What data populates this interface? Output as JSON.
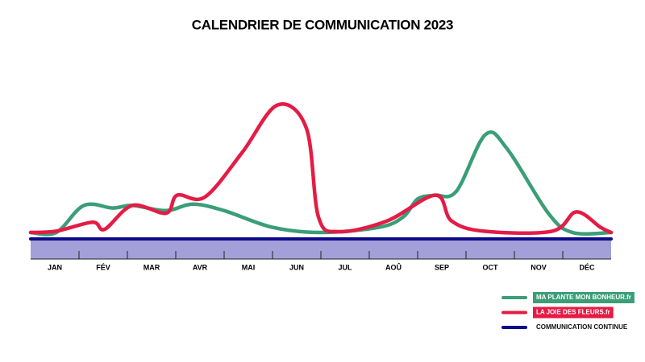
{
  "chart_data": {
    "type": "line",
    "title": "CALENDRIER DE COMMUNICATION 2023",
    "categories": [
      "JAN",
      "FÉV",
      "MAR",
      "AVR",
      "MAI",
      "JUN",
      "JUL",
      "AOÛ",
      "SEP",
      "OCT",
      "NOV",
      "DÉC"
    ],
    "xlim": [
      0,
      12
    ],
    "ylim": [
      -20,
      100
    ],
    "axis_color": "#a39fd8",
    "series": [
      {
        "name": "MA PLANTE MON BONHEUR.fr",
        "color": "#3a9e78",
        "x": [
          0,
          0.53,
          1.1,
          1.7,
          2.1,
          2.8,
          3.35,
          4.0,
          5.0,
          6.0,
          7.2,
          7.7,
          8.0,
          8.35,
          8.8,
          9.4,
          9.85,
          10.7,
          11.2,
          12
        ],
        "values": [
          0,
          0,
          21,
          19,
          21,
          17,
          22,
          17,
          4,
          0,
          4,
          12,
          26,
          29,
          32,
          76,
          65,
          15,
          0,
          0
        ]
      },
      {
        "name": "LA JOIE DES FLEURS.fr",
        "color": "#e41c45",
        "x": [
          0,
          0.53,
          1.28,
          1.53,
          2.1,
          2.8,
          3.03,
          3.6,
          4.37,
          5.1,
          5.7,
          5.95,
          6.37,
          7.37,
          8.37,
          8.7,
          9.37,
          10.78,
          11.28,
          11.78,
          12
        ],
        "values": [
          0,
          1,
          8,
          2.5,
          21,
          15,
          29,
          27.5,
          62,
          99,
          81,
          12,
          0.6,
          9,
          29,
          9,
          1,
          1,
          16,
          4,
          0
        ]
      },
      {
        "name": "COMMUNICATION CONTINUE",
        "color": "#0d0a8a",
        "x": [
          0,
          12
        ],
        "values": [
          -5,
          -5
        ]
      }
    ]
  }
}
